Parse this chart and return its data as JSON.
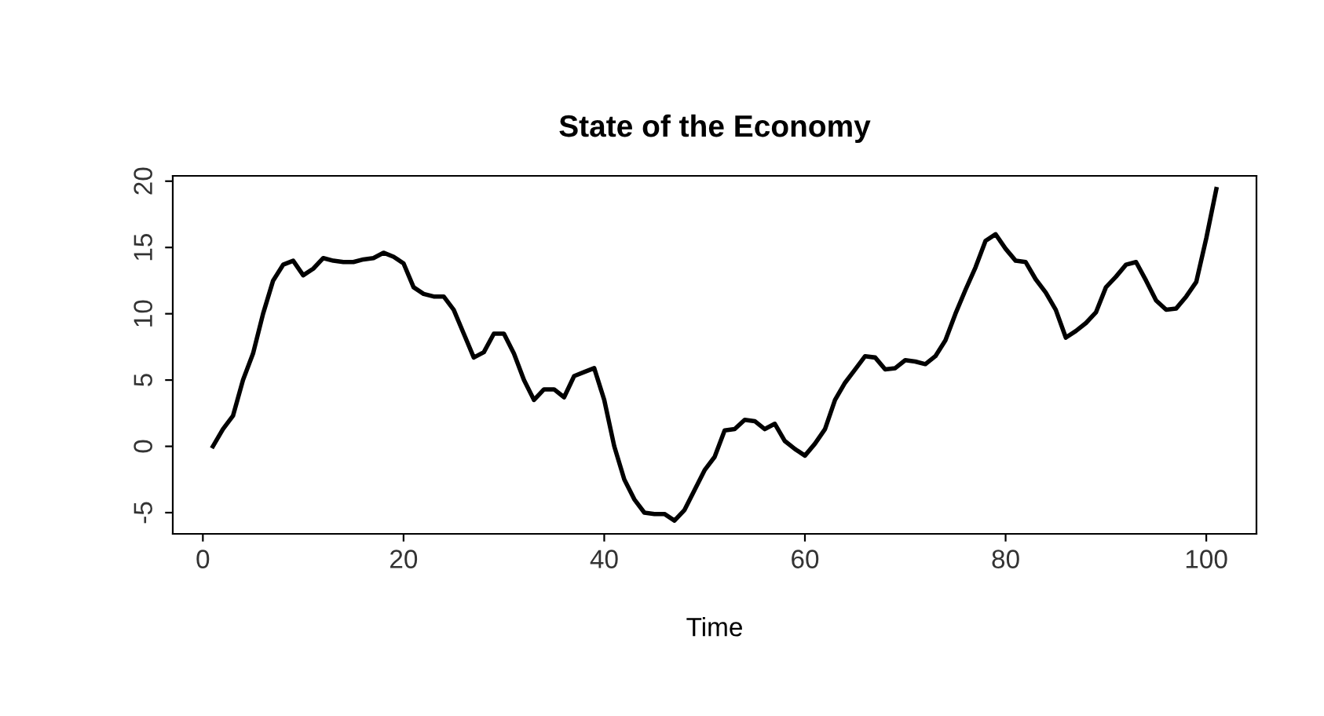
{
  "chart_data": {
    "type": "line",
    "title": "State of the Economy",
    "xlabel": "Time",
    "color": "#000000",
    "x": [
      1,
      2,
      3,
      4,
      5,
      6,
      7,
      8,
      9,
      10,
      11,
      12,
      13,
      14,
      15,
      16,
      17,
      18,
      19,
      20,
      21,
      22,
      23,
      24,
      25,
      26,
      27,
      28,
      29,
      30,
      31,
      32,
      33,
      34,
      35,
      36,
      37,
      38,
      39,
      40,
      41,
      42,
      43,
      44,
      45,
      46,
      47,
      48,
      49,
      50,
      51,
      52,
      53,
      54,
      55,
      56,
      57,
      58,
      59,
      60,
      61,
      62,
      63,
      64,
      65,
      66,
      67,
      68,
      69,
      70,
      71,
      72,
      73,
      74,
      75,
      76,
      77,
      78,
      79,
      80,
      81,
      82,
      83,
      84,
      85,
      86,
      87,
      88,
      89,
      90,
      91,
      92,
      93,
      94,
      95,
      96,
      97,
      98,
      99,
      100,
      101
    ],
    "values": [
      0,
      1.3,
      2.3,
      5,
      7,
      10,
      12.5,
      13.7,
      14,
      12.9,
      13.4,
      14.2,
      14,
      13.9,
      13.9,
      14.1,
      14.2,
      14.6,
      14.3,
      13.8,
      12,
      11.5,
      11.3,
      11.3,
      10.3,
      8.5,
      6.7,
      7.1,
      8.5,
      8.5,
      7,
      5,
      3.5,
      4.3,
      4.3,
      3.7,
      5.3,
      5.6,
      5.9,
      3.5,
      0,
      -2.5,
      -4,
      -5,
      -5.1,
      -5.1,
      -5.6,
      -4.8,
      -3.3,
      -1.8,
      -0.8,
      1.2,
      1.3,
      2,
      1.9,
      1.3,
      1.7,
      0.4,
      -0.2,
      -0.7,
      0.2,
      1.3,
      3.5,
      4.8,
      5.8,
      6.8,
      6.7,
      5.8,
      5.9,
      6.5,
      6.4,
      6.2,
      6.8,
      8,
      10,
      11.8,
      13.5,
      15.5,
      16,
      14.9,
      14,
      13.9,
      12.6,
      11.6,
      10.3,
      8.2,
      8.7,
      9.3,
      10.1,
      12,
      12.8,
      13.7,
      13.9,
      12.5,
      11,
      10.3,
      10.4,
      11.3,
      12.4,
      15.7,
      19.4
    ],
    "xlim": [
      -3,
      105
    ],
    "ylim": [
      -6.6,
      20.4
    ],
    "xticks": [
      0,
      20,
      40,
      60,
      80,
      100
    ],
    "yticks": [
      -5,
      0,
      5,
      10,
      15,
      20
    ],
    "grid": false,
    "legend": false,
    "marker": "none",
    "line_style": "solid"
  }
}
